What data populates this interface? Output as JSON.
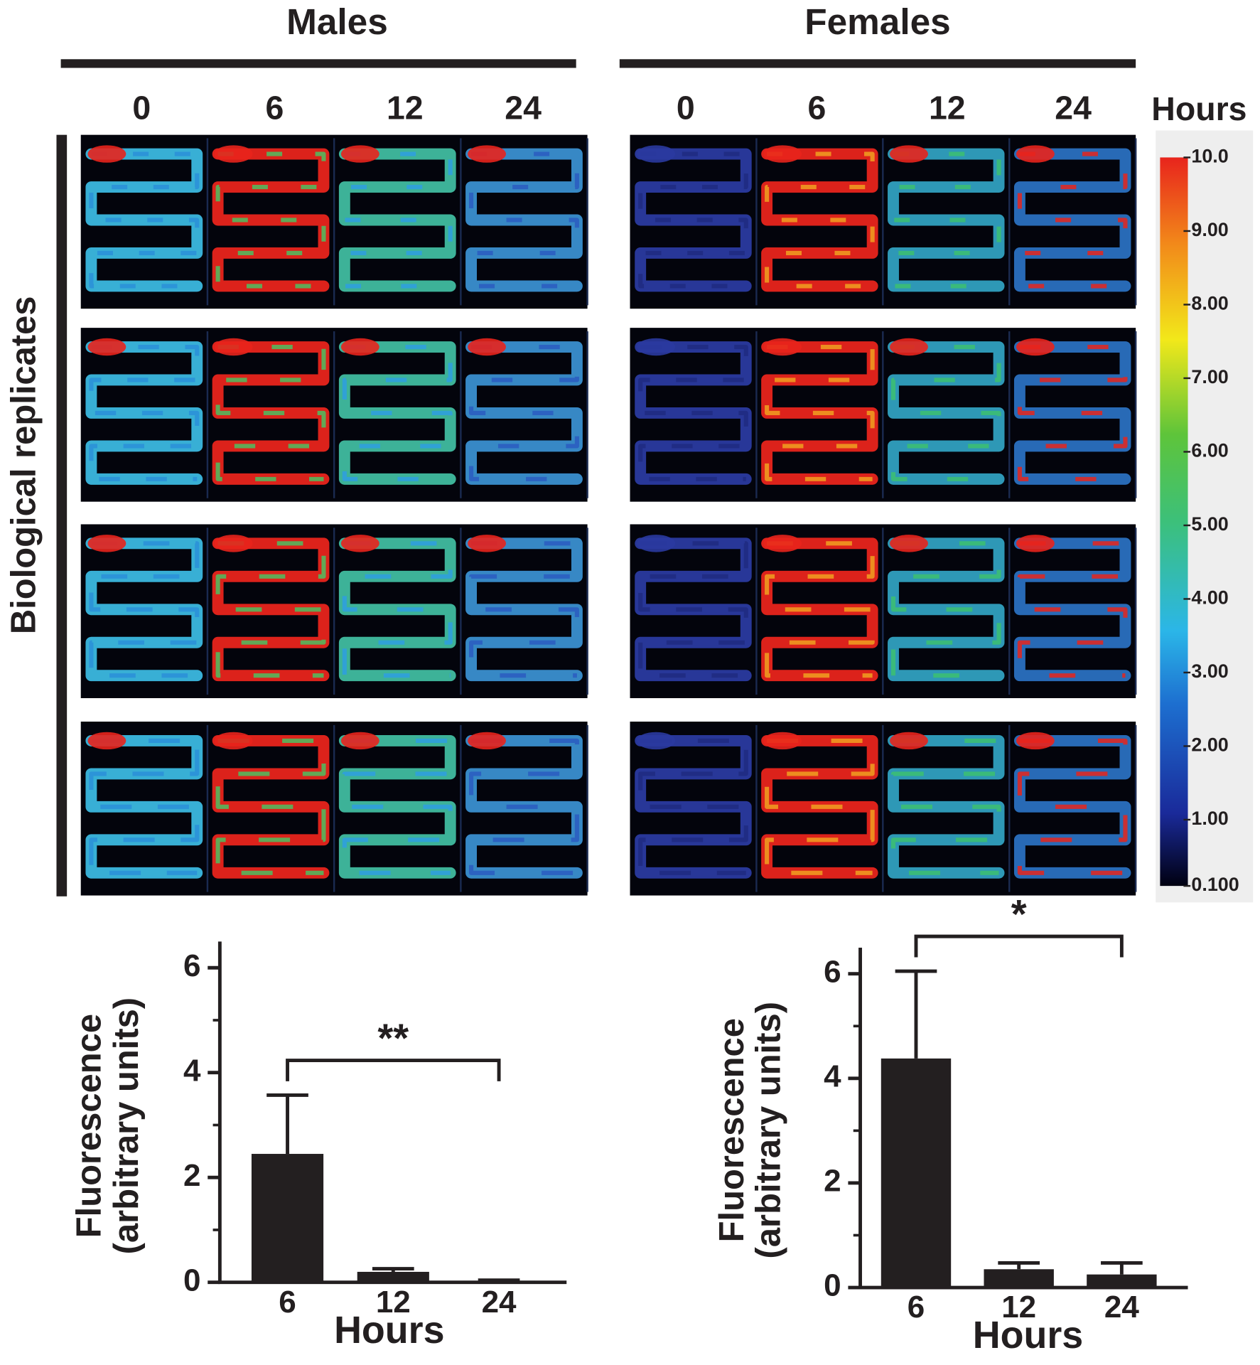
{
  "panels": [
    {
      "title": "Males",
      "times": [
        "0",
        "6",
        "12",
        "24"
      ]
    },
    {
      "title": "Females",
      "times": [
        "0",
        "6",
        "12",
        "24"
      ]
    }
  ],
  "time_unit": "Hours",
  "row_label": "Biological replicates",
  "colorbar": {
    "ticks": [
      {
        "value": 10,
        "label": "10.0"
      },
      {
        "value": 9,
        "label": "9.00"
      },
      {
        "value": 8,
        "label": "8.00"
      },
      {
        "value": 7,
        "label": "7.00"
      },
      {
        "value": 6,
        "label": "6.00"
      },
      {
        "value": 5,
        "label": "5.00"
      },
      {
        "value": 4,
        "label": "4.00"
      },
      {
        "value": 3,
        "label": "3.00"
      },
      {
        "value": 2,
        "label": "2.00"
      },
      {
        "value": 1,
        "label": "1.00"
      },
      {
        "value": 0.1,
        "label": "0.100"
      }
    ]
  },
  "chart_data": [
    {
      "type": "bar",
      "categories": [
        "6",
        "12",
        "24"
      ],
      "values": [
        2.45,
        0.2,
        0.03
      ],
      "errors": [
        1.12,
        0.06,
        0.01
      ],
      "color": "#231f20",
      "ylabel": [
        "Fluorescence",
        "(arbitrary units)"
      ],
      "xlabel": "Hours",
      "annotation": "**",
      "ylim": [
        0,
        6.5
      ],
      "yticks": [
        0,
        2,
        4,
        6
      ],
      "yminorticks": [
        1,
        3,
        5
      ]
    },
    {
      "type": "bar",
      "categories": [
        "6",
        "12",
        "24"
      ],
      "values": [
        4.38,
        0.35,
        0.25
      ],
      "errors": [
        1.67,
        0.12,
        0.22
      ],
      "color": "#231f20",
      "ylabel": [
        "Fluorescence",
        "(arbitrary units)"
      ],
      "xlabel": "Hours",
      "annotation": "*",
      "ylim": [
        0,
        6.5
      ],
      "yticks": [
        0,
        2,
        4,
        6
      ],
      "yminorticks": [
        1,
        3,
        5
      ]
    }
  ]
}
